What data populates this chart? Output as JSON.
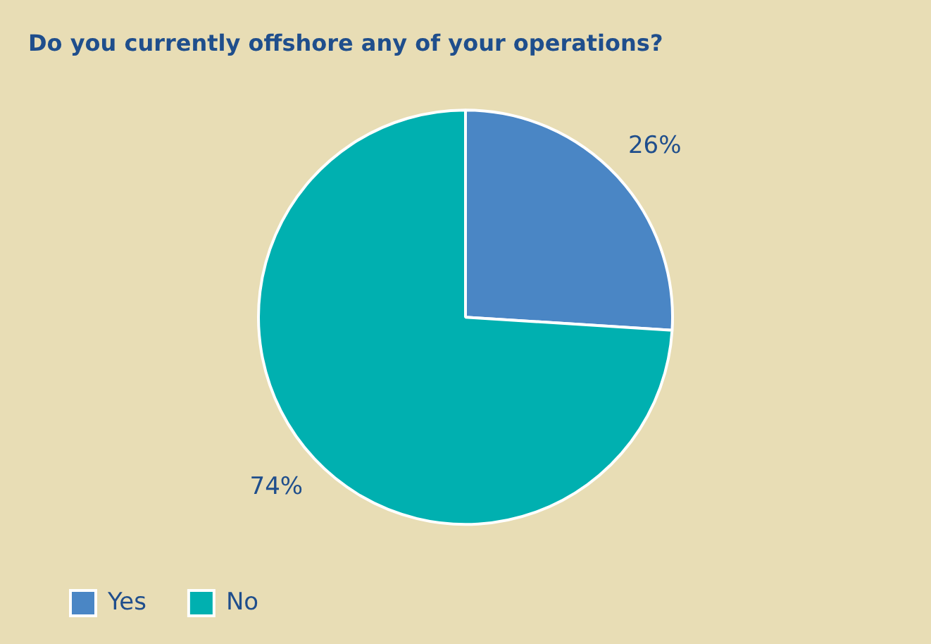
{
  "chart_data": {
    "type": "pie",
    "title": "Do you currently offshore any of your operations?",
    "categories": [
      "Yes",
      "No"
    ],
    "values": [
      26,
      74
    ],
    "colors": [
      "#4a86c5",
      "#00b0b0"
    ],
    "value_labels": [
      "26%",
      "74%"
    ],
    "legend": "bottom left"
  }
}
